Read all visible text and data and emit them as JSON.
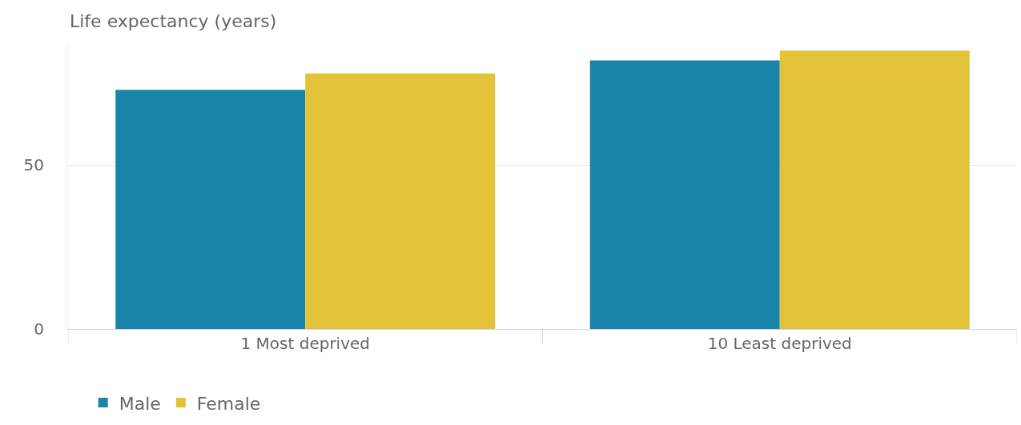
{
  "chart_data": {
    "type": "bar",
    "annotations": [
      "Life expectancy (years)"
    ],
    "categories": [
      "1 Most deprived",
      "10 Least deprived"
    ],
    "series": [
      {
        "name": "Male",
        "color": "#1a83aa",
        "values": [
          73,
          82
        ]
      },
      {
        "name": "Female",
        "color": "#e2c238",
        "values": [
          78,
          85
        ]
      }
    ],
    "ylim": [
      0,
      87
    ],
    "yticks": [
      0,
      50
    ],
    "grid": "y",
    "legend": "bottom"
  }
}
